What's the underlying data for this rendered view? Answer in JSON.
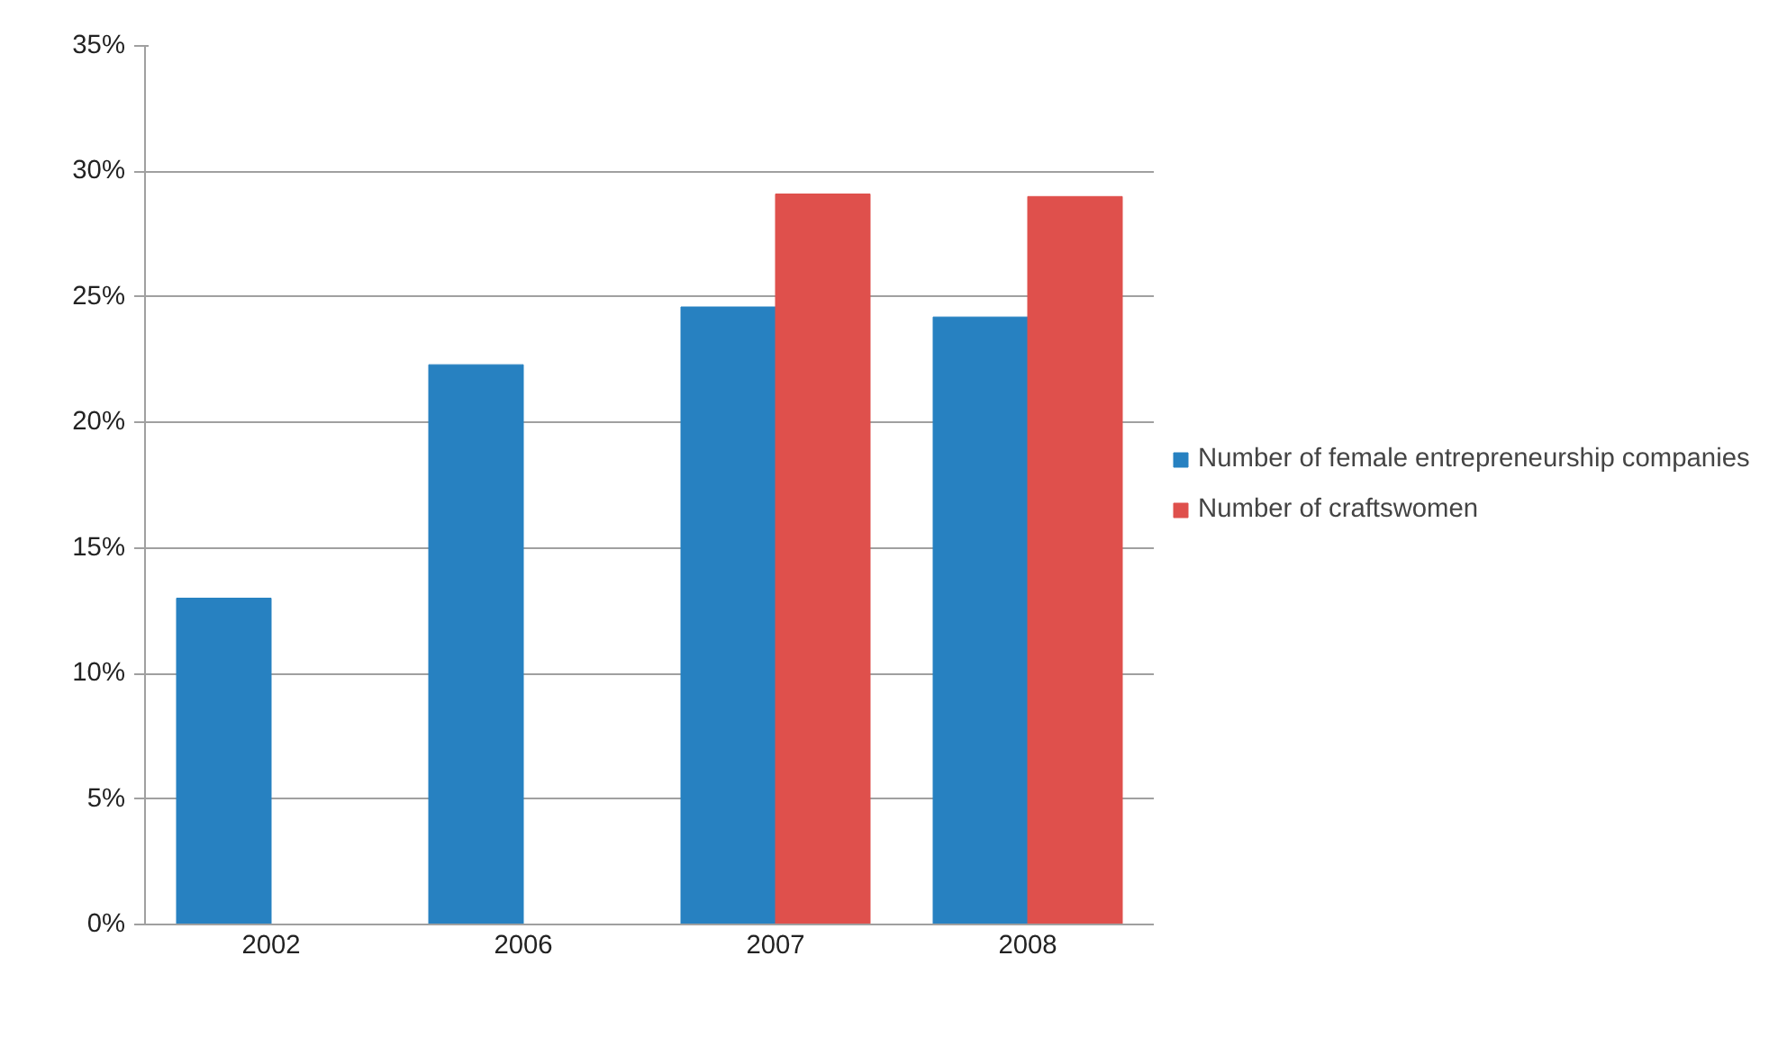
{
  "chart_data": {
    "type": "bar",
    "categories": [
      "2002",
      "2006",
      "2007",
      "2008"
    ],
    "series": [
      {
        "name": "Number of female entrepreneurship companies",
        "color": "#2781c1",
        "values": [
          13.0,
          22.3,
          24.6,
          24.2
        ]
      },
      {
        "name": "Number of craftswomen",
        "color": "#df504c",
        "values": [
          null,
          null,
          29.1,
          29.0
        ]
      }
    ],
    "ylim": [
      0,
      35
    ],
    "yticks": [
      {
        "value": 0,
        "label": "0%"
      },
      {
        "value": 5,
        "label": "5%"
      },
      {
        "value": 10,
        "label": "10%"
      },
      {
        "value": 15,
        "label": "15%"
      },
      {
        "value": 20,
        "label": "20%"
      },
      {
        "value": 25,
        "label": "25%"
      },
      {
        "value": 30,
        "label": "30%"
      },
      {
        "value": 35,
        "label": "35%"
      }
    ],
    "grid": "y",
    "legend": "right"
  }
}
